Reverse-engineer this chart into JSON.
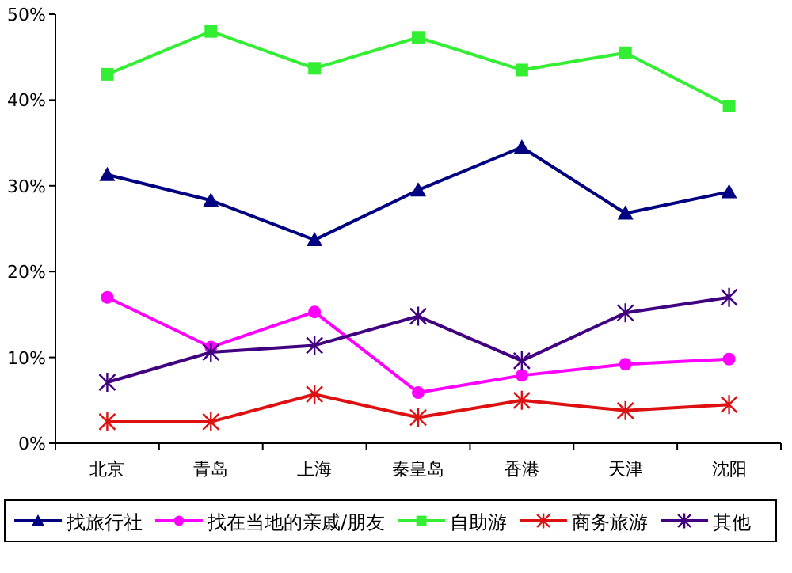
{
  "chart_data": {
    "type": "line",
    "categories": [
      "北京",
      "青岛",
      "上海",
      "秦皇岛",
      "香港",
      "天津",
      "沈阳"
    ],
    "ylim": [
      0,
      50
    ],
    "yticks": [
      {
        "value": 0,
        "label": "0%"
      },
      {
        "value": 10,
        "label": "10%"
      },
      {
        "value": 20,
        "label": "20%"
      },
      {
        "value": 30,
        "label": "30%"
      },
      {
        "value": 40,
        "label": "40%"
      },
      {
        "value": 50,
        "label": "50%"
      }
    ],
    "grid": false,
    "legend": "bottom",
    "series": [
      {
        "name": "找旅行社",
        "color": "#000080",
        "marker": "triangle",
        "values": [
          31.3,
          28.3,
          23.7,
          29.5,
          34.5,
          26.8,
          29.3
        ]
      },
      {
        "name": "找在当地的亲戚/朋友",
        "color": "#ff00ff",
        "marker": "circle",
        "values": [
          17,
          11.2,
          15.3,
          5.9,
          7.9,
          9.2,
          9.8
        ]
      },
      {
        "name": "自助游",
        "color": "#33ee33",
        "marker": "square",
        "values": [
          43,
          48,
          43.7,
          47.3,
          43.5,
          45.5,
          39.3
        ]
      },
      {
        "name": "商务旅游",
        "color": "#dd1111",
        "marker": "cross",
        "values": [
          2.5,
          2.5,
          5.7,
          3,
          5,
          3.8,
          4.5
        ]
      },
      {
        "name": "其他",
        "color": "#400080",
        "marker": "cross",
        "values": [
          7.1,
          10.6,
          11.4,
          14.8,
          9.6,
          15.2,
          17
        ]
      }
    ]
  }
}
